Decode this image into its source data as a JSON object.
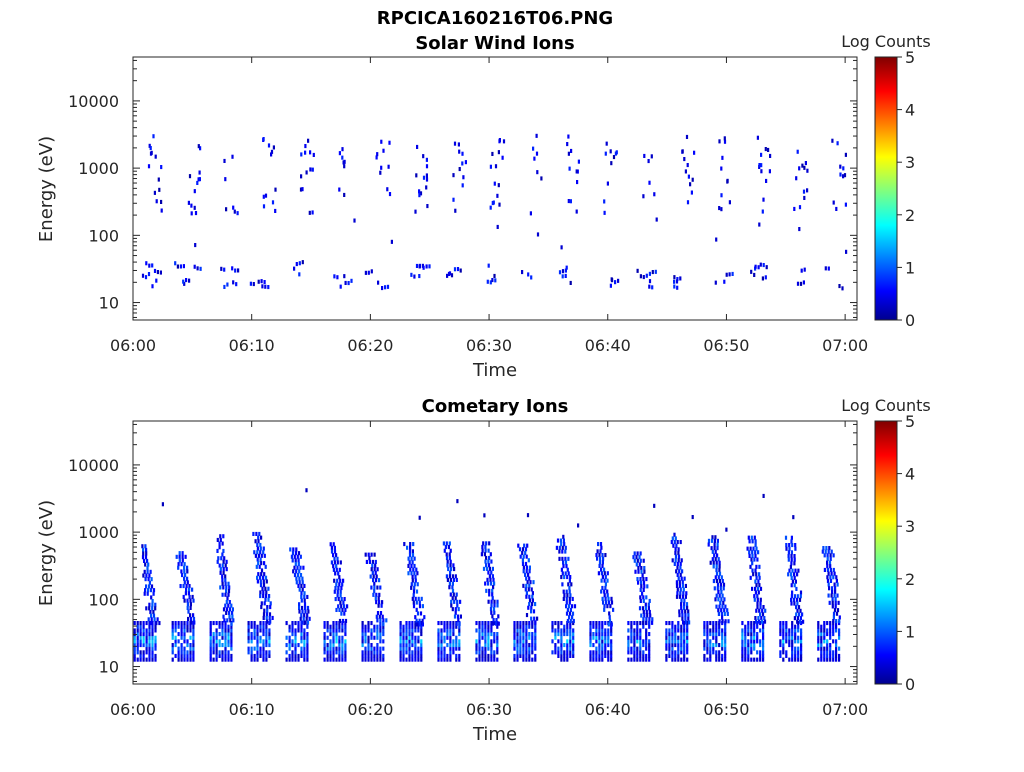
{
  "figure_title": "RPCICA160216T06.PNG",
  "chart_data": [
    {
      "type": "heatmap",
      "title": "Solar Wind Ions",
      "xlabel": "Time",
      "ylabel": "Energy (eV)",
      "x_ticks": [
        "06:00",
        "06:10",
        "06:20",
        "06:30",
        "06:40",
        "06:50",
        "07:00"
      ],
      "xlim": [
        "06:00",
        "07:01"
      ],
      "y_scale": "log",
      "y_ticks": [
        10,
        100,
        1000,
        10000
      ],
      "y_tick_labels": [
        "10",
        "100",
        "1000",
        "10000"
      ],
      "ylim": [
        5.5,
        45000
      ],
      "colorbar": {
        "label": "Log Counts",
        "range": [
          0,
          5
        ],
        "ticks": [
          "0",
          "1",
          "2",
          "3",
          "4",
          "5"
        ],
        "colormap": "jet"
      },
      "sweep_period_min": 3.2,
      "bands": [
        {
          "name": "low-energy band",
          "energy_range_eV": [
            16,
            36
          ],
          "log_counts": [
            0.2,
            0.9
          ]
        },
        {
          "name": "solar wind band",
          "energy_range_eV": [
            200,
            3000
          ],
          "log_counts": [
            0.2,
            0.8
          ]
        }
      ]
    },
    {
      "type": "heatmap",
      "title": "Cometary Ions",
      "xlabel": "Time",
      "ylabel": "Energy (eV)",
      "x_ticks": [
        "06:00",
        "06:10",
        "06:20",
        "06:30",
        "06:40",
        "06:50",
        "07:00"
      ],
      "xlim": [
        "06:00",
        "07:01"
      ],
      "y_scale": "log",
      "y_ticks": [
        10,
        100,
        1000,
        10000
      ],
      "y_tick_labels": [
        "10",
        "100",
        "1000",
        "10000"
      ],
      "ylim": [
        5.5,
        45000
      ],
      "colorbar": {
        "label": "Log Counts",
        "range": [
          0,
          5
        ],
        "ticks": [
          "0",
          "1",
          "2",
          "3",
          "4",
          "5"
        ],
        "colormap": "jet"
      },
      "sweep_period_min": 3.2,
      "bands": [
        {
          "name": "low-energy band",
          "energy_range_eV": [
            12,
            45
          ],
          "log_counts": [
            0.3,
            1.8
          ]
        },
        {
          "name": "cometary arc",
          "energy_range_eV": [
            40,
            1000
          ],
          "log_counts": [
            0.3,
            1.1
          ]
        }
      ]
    }
  ]
}
